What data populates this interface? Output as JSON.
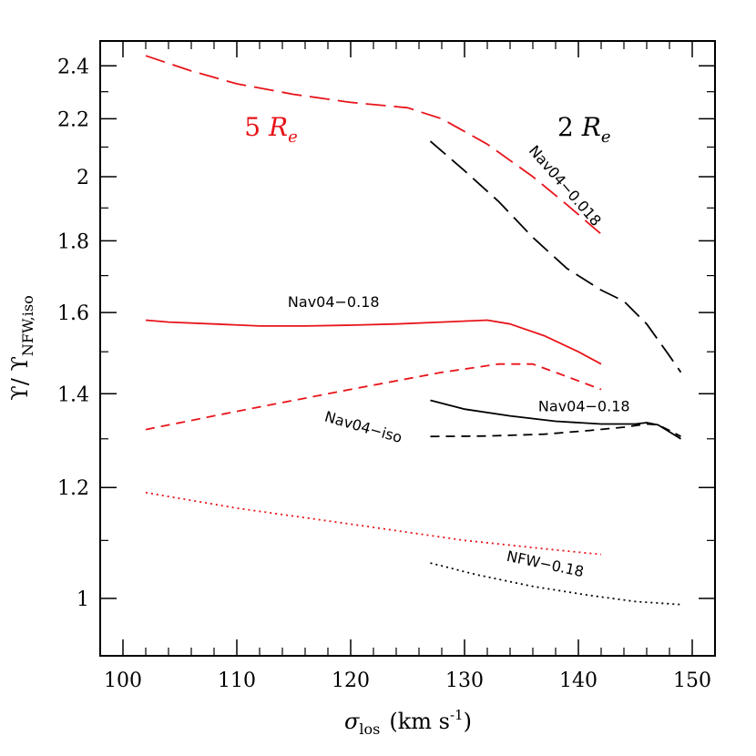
{
  "chart_data": {
    "type": "line",
    "title": "",
    "scale": {
      "y": "log"
    },
    "xlabel": {
      "symbol": "σ",
      "subscript": "los",
      "units": "(km  s",
      "sup": "-1",
      "close": ")"
    },
    "ylabel": {
      "base": "ϒ/ ϒ",
      "subscript": "NFW,iso"
    },
    "xlim": [
      98,
      152
    ],
    "ylim": [
      0.91,
      2.5
    ],
    "xticks": [
      100,
      110,
      120,
      130,
      140,
      150
    ],
    "xtick_labels": [
      "100",
      "110",
      "120",
      "130",
      "140",
      "150"
    ],
    "yticks": [
      1,
      1.2,
      1.4,
      1.6,
      1.8,
      2,
      2.2,
      2.4
    ],
    "ytick_labels": [
      "1",
      "1.2",
      "1.4",
      "1.6",
      "1.8",
      "2",
      "2.2",
      "2.4"
    ],
    "colors": {
      "red": "#e8141a",
      "black": "#000000"
    },
    "series": [
      {
        "group": "5 Re",
        "color": "#e8141a",
        "style": "long-dash",
        "x": [
          102,
          106,
          110,
          115,
          120,
          125,
          128,
          132,
          136,
          139,
          142
        ],
        "y": [
          2.44,
          2.38,
          2.33,
          2.29,
          2.26,
          2.24,
          2.2,
          2.11,
          2.0,
          1.91,
          1.82
        ]
      },
      {
        "group": "5 Re",
        "color": "#e8141a",
        "style": "solid",
        "x": [
          102,
          104,
          108,
          112,
          116,
          120,
          124,
          128,
          132,
          134,
          137,
          140,
          142
        ],
        "y": [
          1.58,
          1.575,
          1.57,
          1.565,
          1.565,
          1.567,
          1.57,
          1.575,
          1.58,
          1.57,
          1.54,
          1.5,
          1.47
        ]
      },
      {
        "group": "5 Re",
        "color": "#e8141a",
        "style": "short-dash",
        "x": [
          102,
          110,
          120,
          128,
          133,
          136,
          139,
          142
        ],
        "y": [
          1.32,
          1.36,
          1.41,
          1.45,
          1.47,
          1.47,
          1.44,
          1.41
        ]
      },
      {
        "group": "5 Re",
        "color": "#e8141a",
        "style": "dotted",
        "x": [
          102,
          110,
          120,
          130,
          137,
          142
        ],
        "y": [
          1.19,
          1.16,
          1.13,
          1.1,
          1.085,
          1.075
        ]
      },
      {
        "group": "2 Re",
        "color": "#000000",
        "style": "long-dash",
        "x": [
          127,
          130,
          133,
          136,
          139,
          142,
          144,
          146,
          148,
          149
        ],
        "y": [
          2.12,
          2.02,
          1.92,
          1.81,
          1.72,
          1.66,
          1.63,
          1.57,
          1.49,
          1.45
        ]
      },
      {
        "group": "2 Re",
        "color": "#000000",
        "style": "solid",
        "x": [
          127,
          130,
          134,
          138,
          142,
          145,
          146,
          147,
          148,
          149
        ],
        "y": [
          1.385,
          1.365,
          1.35,
          1.338,
          1.332,
          1.332,
          1.335,
          1.33,
          1.315,
          1.3
        ]
      },
      {
        "group": "2 Re",
        "color": "#000000",
        "style": "short-dash",
        "x": [
          127,
          132,
          137,
          141,
          144,
          146,
          147,
          148,
          149
        ],
        "y": [
          1.305,
          1.306,
          1.31,
          1.318,
          1.325,
          1.332,
          1.33,
          1.318,
          1.305
        ]
      },
      {
        "group": "2 Re",
        "color": "#000000",
        "style": "dotted",
        "x": [
          127,
          131,
          136,
          141,
          145,
          149
        ],
        "y": [
          1.06,
          1.04,
          1.02,
          1.005,
          0.995,
          0.99
        ]
      }
    ],
    "annotations": [
      {
        "id": "five-re",
        "text": "5",
        "sym": "R",
        "sub": "e",
        "color": "#e8141a",
        "x": 113,
        "y": 2.14,
        "rotate": 0
      },
      {
        "id": "two-re",
        "text": "2",
        "sym": "R",
        "sub": "e",
        "color": "#000000",
        "x": 140.5,
        "y": 2.14,
        "rotate": 0
      },
      {
        "id": "nav04-018-red",
        "text": "Nav04−0.18",
        "color": "#000000",
        "x": 118.5,
        "y": 1.615,
        "rotate": 0
      },
      {
        "id": "nav04-0018",
        "text": "Nav04−0.018",
        "color": "#000000",
        "x": 138.5,
        "y": 1.96,
        "rotate": 49
      },
      {
        "id": "nav04-iso",
        "text": "Nav04−iso",
        "color": "#000000",
        "x": 121,
        "y": 1.315,
        "rotate": 16
      },
      {
        "id": "nav04-018-black",
        "text": "Nav04−0.18",
        "color": "#000000",
        "x": 140.5,
        "y": 1.36,
        "rotate": 0
      },
      {
        "id": "nfw-018",
        "text": "NFW−0.18",
        "color": "#000000",
        "x": 137,
        "y": 1.05,
        "rotate": 12
      }
    ]
  }
}
